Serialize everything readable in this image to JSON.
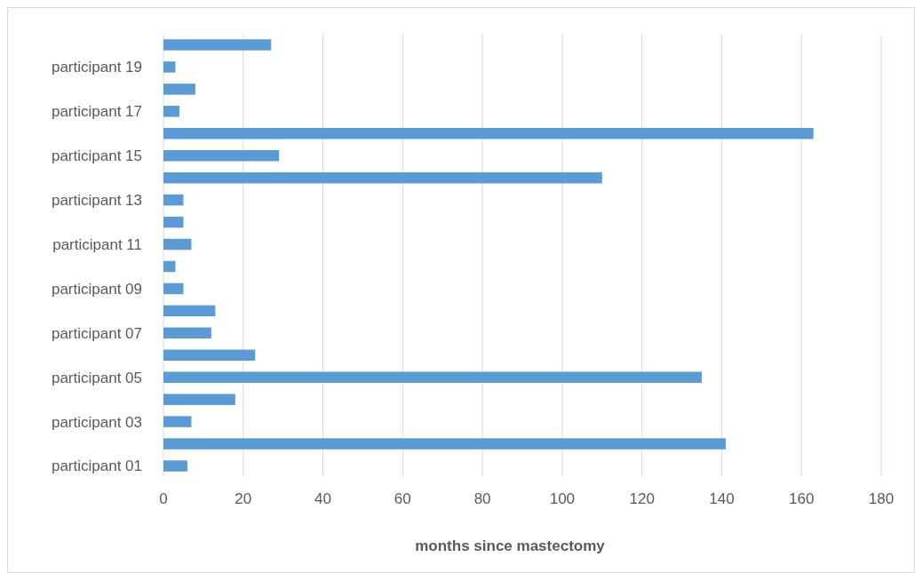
{
  "chart_data": {
    "type": "bar",
    "orientation": "horizontal",
    "xlabel": "months since mastectomy",
    "categories": [
      null,
      "participant 19",
      null,
      "participant 17",
      null,
      "participant 15",
      null,
      "participant 13",
      null,
      "participant 11",
      null,
      "participant 09",
      null,
      "participant 07",
      null,
      "participant 05",
      null,
      "participant 03",
      null,
      "participant 01"
    ],
    "values": [
      27,
      3,
      8,
      4,
      163,
      29,
      110,
      5,
      5,
      7,
      3,
      5,
      13,
      12,
      23,
      135,
      18,
      7,
      141,
      6
    ],
    "color": "#5b9bd5",
    "xlim": [
      0,
      180
    ],
    "xticks": [
      0,
      20,
      40,
      60,
      80,
      100,
      120,
      140,
      160,
      180
    ],
    "grid": "x"
  }
}
